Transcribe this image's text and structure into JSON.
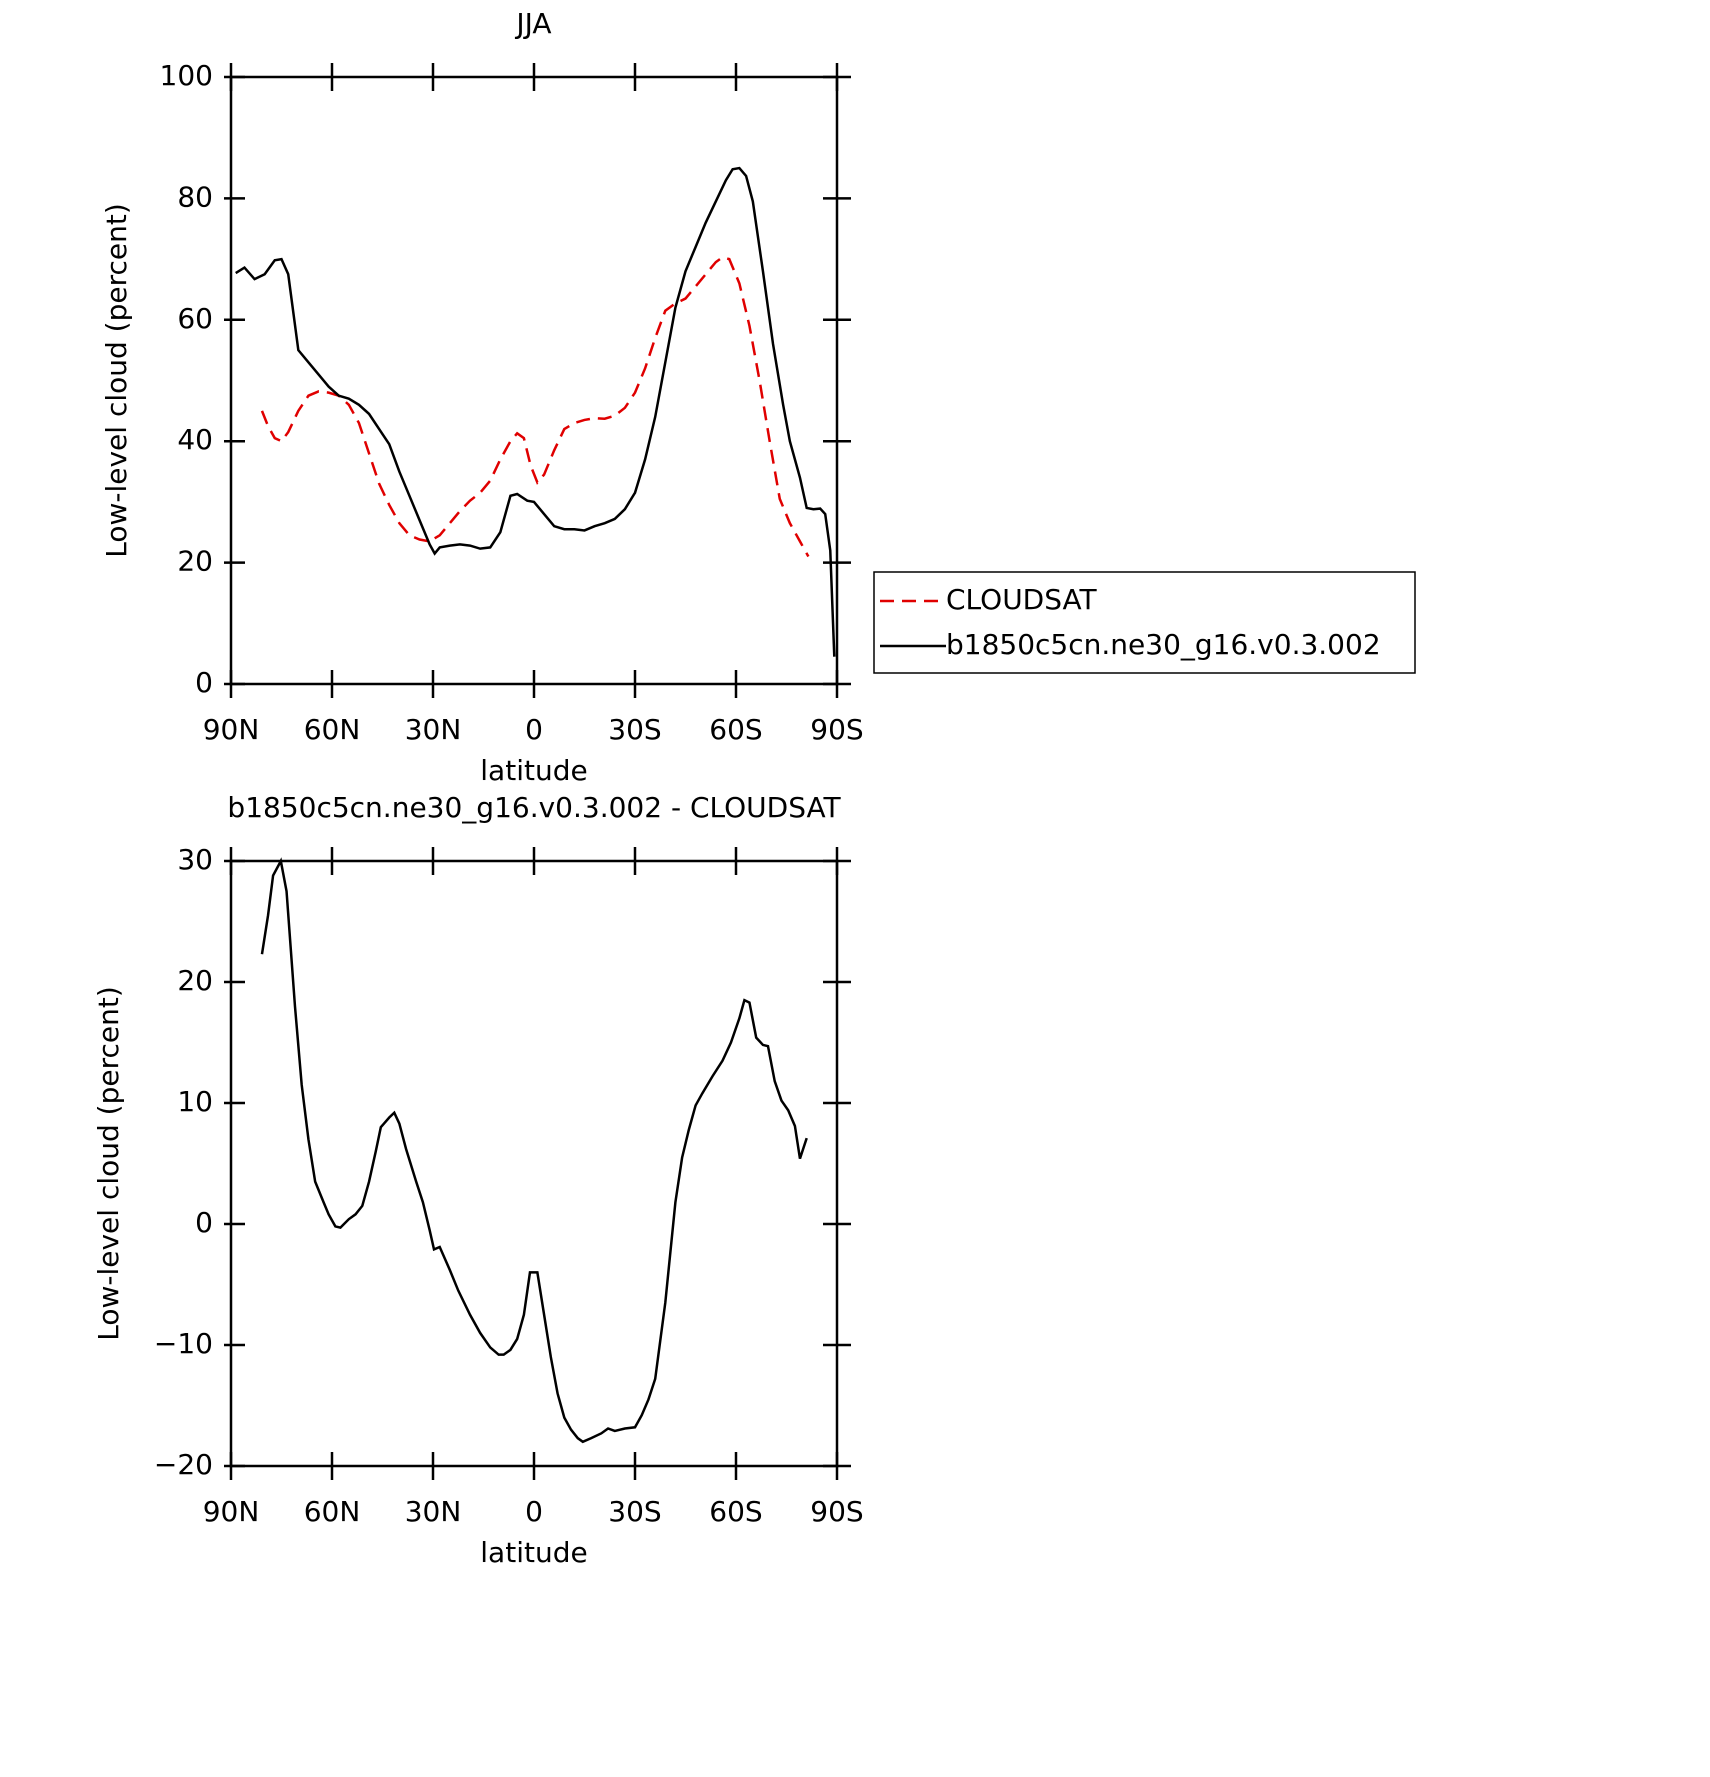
{
  "chart_data": [
    {
      "type": "line",
      "title": "JJA",
      "xlabel": "latitude",
      "ylabel": "Low-level cloud (percent)",
      "xlim": [
        90,
        -90
      ],
      "xticks": [
        {
          "value": 90,
          "label": "90N"
        },
        {
          "value": 60,
          "label": "60N"
        },
        {
          "value": 30,
          "label": "30N"
        },
        0,
        {
          "value": -30,
          "label": "30S"
        },
        {
          "value": -60,
          "label": "60S"
        },
        {
          "value": -90,
          "label": "90S"
        }
      ],
      "ylim": [
        0,
        100
      ],
      "yticks": [
        0,
        20,
        40,
        60,
        80,
        100
      ],
      "legend": "right",
      "series": [
        {
          "name": "CLOUDSAT",
          "color": "#e00000",
          "dashed": true,
          "x": [
            80.8,
            79,
            77,
            75,
            73,
            70,
            67,
            64,
            61,
            58,
            55,
            52,
            49,
            46,
            43,
            40,
            37,
            34,
            31,
            28,
            25,
            22,
            19,
            16,
            13,
            10,
            7,
            5,
            3,
            1,
            -1,
            -3,
            -6,
            -9,
            -12,
            -15,
            -18,
            -21,
            -24,
            -27,
            -30,
            -33,
            -36,
            -39,
            -42,
            -45,
            -48,
            -51,
            -54,
            -56,
            -58,
            -61,
            -64,
            -67,
            -70,
            -73,
            -76,
            -79,
            -81.5
          ],
          "values": [
            45,
            42.5,
            40.5,
            40,
            41.5,
            45,
            47.5,
            48.2,
            48,
            47.5,
            46,
            43,
            38,
            33,
            29.5,
            26.5,
            24.5,
            23.8,
            23.5,
            24.5,
            26.5,
            28.5,
            30.2,
            31.5,
            33.5,
            37,
            40,
            41.3,
            40.5,
            36,
            33.2,
            34.5,
            38.5,
            42,
            43,
            43.5,
            43.8,
            43.7,
            44.2,
            45.5,
            48,
            52,
            57,
            61.5,
            62.7,
            63.5,
            65.5,
            67.5,
            69.5,
            70.3,
            70,
            66,
            59,
            50,
            40,
            30.5,
            26.5,
            23.5,
            21
          ]
        },
        {
          "name": "b1850c5cn.ne30_g16.v0.3.002",
          "color": "#000000",
          "dashed": false,
          "x": [
            88.6,
            86,
            83,
            80,
            77,
            75,
            73,
            70,
            67,
            64,
            61,
            58,
            55,
            52,
            49,
            46,
            43,
            40,
            37,
            34,
            31,
            29.5,
            28,
            25,
            22,
            19,
            16,
            13,
            10,
            7,
            5,
            2,
            0,
            -3,
            -6,
            -9,
            -12,
            -15,
            -18,
            -21,
            -24,
            -27,
            -30,
            -33,
            -36,
            -39,
            -42,
            -45,
            -48,
            -51,
            -54,
            -57,
            -59,
            -61,
            -63,
            -65,
            -68,
            -71,
            -74,
            -76,
            -79,
            -81,
            -83,
            -85,
            -86.5,
            -88,
            -89.2
          ],
          "values": [
            67.7,
            68.6,
            66.7,
            67.5,
            69.8,
            70,
            67.5,
            55,
            53,
            51,
            49,
            47.5,
            47,
            46,
            44.5,
            42,
            39.5,
            35,
            31,
            27,
            23,
            21.5,
            22.5,
            22.8,
            23,
            22.8,
            22.3,
            22.5,
            25,
            31,
            31.3,
            30.2,
            30,
            28,
            26,
            25.5,
            25.5,
            25.3,
            26,
            26.5,
            27.2,
            28.8,
            31.5,
            37,
            44,
            53,
            62,
            68,
            72,
            76,
            79.5,
            83,
            84.8,
            85,
            83.7,
            79.5,
            68,
            56,
            46,
            40,
            34,
            29,
            28.8,
            28.9,
            28,
            22,
            4.5
          ]
        }
      ]
    },
    {
      "type": "line",
      "title": "b1850c5cn.ne30_g16.v0.3.002 - CLOUDSAT",
      "xlabel": "latitude",
      "ylabel": "Low-level cloud (percent)",
      "xlim": [
        90,
        -90
      ],
      "xticks": [
        {
          "value": 90,
          "label": "90N"
        },
        {
          "value": 60,
          "label": "60N"
        },
        {
          "value": 30,
          "label": "30N"
        },
        0,
        {
          "value": -30,
          "label": "30S"
        },
        {
          "value": -60,
          "label": "60S"
        },
        {
          "value": -90,
          "label": "90S"
        }
      ],
      "ylim": [
        -20,
        30
      ],
      "yticks": [
        {
          "value": -20,
          "label": "−20"
        },
        {
          "value": -10,
          "label": "−10"
        },
        0,
        10,
        20,
        30
      ],
      "series": [
        {
          "color": "#000000",
          "dashed": false,
          "x": [
            80.8,
            79,
            77.5,
            75.2,
            73.5,
            71,
            69,
            67,
            65,
            62.5,
            61,
            59,
            57.5,
            55,
            53,
            51,
            49,
            47,
            45.5,
            43,
            41.5,
            40,
            38,
            35,
            33,
            31,
            29.7,
            28,
            25,
            22.5,
            19,
            16,
            13,
            10.5,
            9,
            7,
            5,
            3,
            1.2,
            -1,
            -3,
            -5,
            -7,
            -9,
            -11,
            -13,
            -14.5,
            -17,
            -20,
            -22,
            -24,
            -27,
            -30,
            -32,
            -34,
            -36,
            -39,
            -42,
            -44,
            -46,
            -48,
            -50,
            -53,
            -56,
            -58.5,
            -61,
            -62.5,
            -64,
            -66,
            -68,
            -69.5,
            -71.5,
            -73.5,
            -75.5,
            -77.5,
            -79,
            -81
          ],
          "values": [
            22.3,
            25.5,
            28.8,
            30,
            27.5,
            18,
            11.5,
            7,
            3.5,
            1.8,
            0.8,
            -0.2,
            -0.3,
            0.4,
            0.8,
            1.5,
            3.5,
            6,
            8,
            8.8,
            9.2,
            8.3,
            6.2,
            3.5,
            1.8,
            -0.5,
            -2.1,
            -1.9,
            -3.8,
            -5.5,
            -7.5,
            -9,
            -10.2,
            -10.8,
            -10.8,
            -10.4,
            -9.5,
            -7.5,
            -4,
            -4,
            -7.5,
            -11,
            -14,
            -16,
            -17,
            -17.7,
            -18,
            -17.7,
            -17.3,
            -16.9,
            -17.1,
            -16.9,
            -16.8,
            -15.8,
            -14.5,
            -12.8,
            -6.5,
            1.8,
            5.5,
            7.8,
            9.8,
            10.8,
            12.2,
            13.5,
            15,
            17,
            18.5,
            18.3,
            15.4,
            14.8,
            14.7,
            11.8,
            10.2,
            9.4,
            8.1,
            5.4,
            7.1
          ]
        }
      ]
    }
  ]
}
